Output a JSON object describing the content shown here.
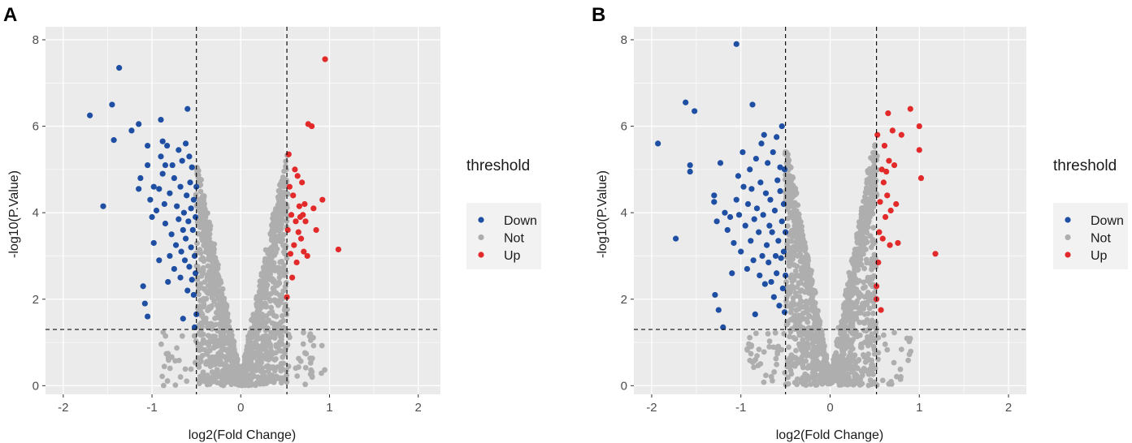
{
  "colors": {
    "down": "#1f4fa3",
    "not": "#aeaeae",
    "up": "#e32a2a",
    "panel": "#ebebeb",
    "grid": "#ffffff"
  },
  "chart_data": [
    {
      "type": "scatter",
      "panel_label": "A",
      "title": "",
      "xlabel": "log2(Fold Change)",
      "ylabel": "-log10(P.Value)",
      "xlim": [
        -2.2,
        2.25
      ],
      "ylim": [
        -0.2,
        8.3
      ],
      "xticks": [
        -2,
        -1,
        0,
        1,
        2
      ],
      "yticks": [
        0,
        2,
        4,
        6,
        8
      ],
      "thresholds": {
        "x": [
          -0.5,
          0.52
        ],
        "y": 1.3
      },
      "legend": {
        "title": "threshold",
        "position": "right",
        "entries": [
          "Down",
          "Not",
          "Up"
        ]
      },
      "series": [
        {
          "name": "Down",
          "points": [
            [
              -1.7,
              6.25
            ],
            [
              -1.55,
              4.15
            ],
            [
              -1.45,
              6.5
            ],
            [
              -1.43,
              5.68
            ],
            [
              -1.37,
              7.35
            ],
            [
              -1.23,
              5.9
            ],
            [
              -1.15,
              6.05
            ],
            [
              -1.15,
              4.55
            ],
            [
              -1.13,
              4.8
            ],
            [
              -1.1,
              2.3
            ],
            [
              -1.08,
              1.9
            ],
            [
              -1.05,
              1.6
            ],
            [
              -1.05,
              5.1
            ],
            [
              -1.05,
              5.55
            ],
            [
              -1.02,
              4.3
            ],
            [
              -1.0,
              3.9
            ],
            [
              -0.98,
              3.3
            ],
            [
              -0.98,
              4.6
            ],
            [
              -0.95,
              4.05
            ],
            [
              -0.92,
              4.55
            ],
            [
              -0.92,
              2.9
            ],
            [
              -0.9,
              6.15
            ],
            [
              -0.9,
              5.3
            ],
            [
              -0.88,
              5.65
            ],
            [
              -0.88,
              4.9
            ],
            [
              -0.86,
              4.2
            ],
            [
              -0.85,
              3.75
            ],
            [
              -0.85,
              5.1
            ],
            [
              -0.83,
              5.55
            ],
            [
              -0.82,
              2.4
            ],
            [
              -0.8,
              4.45
            ],
            [
              -0.8,
              3.0
            ],
            [
              -0.78,
              3.5
            ],
            [
              -0.77,
              5.1
            ],
            [
              -0.75,
              4.8
            ],
            [
              -0.75,
              2.7
            ],
            [
              -0.73,
              3.25
            ],
            [
              -0.72,
              4.15
            ],
            [
              -0.7,
              5.45
            ],
            [
              -0.7,
              3.85
            ],
            [
              -0.68,
              4.6
            ],
            [
              -0.68,
              2.5
            ],
            [
              -0.67,
              3.1
            ],
            [
              -0.66,
              5.2
            ],
            [
              -0.65,
              3.6
            ],
            [
              -0.65,
              1.55
            ],
            [
              -0.64,
              4.0
            ],
            [
              -0.63,
              2.9
            ],
            [
              -0.62,
              5.6
            ],
            [
              -0.62,
              3.4
            ],
            [
              -0.61,
              4.4
            ],
            [
              -0.6,
              2.2
            ],
            [
              -0.6,
              6.4
            ],
            [
              -0.59,
              3.8
            ],
            [
              -0.58,
              5.3
            ],
            [
              -0.58,
              2.75
            ],
            [
              -0.57,
              4.7
            ],
            [
              -0.56,
              3.2
            ],
            [
              -0.56,
              4.1
            ],
            [
              -0.55,
              2.45
            ],
            [
              -0.55,
              5.05
            ],
            [
              -0.54,
              3.6
            ],
            [
              -0.53,
              2.1
            ],
            [
              -0.53,
              4.3
            ],
            [
              -0.52,
              3.0
            ],
            [
              -0.52,
              1.35
            ],
            [
              -0.51,
              3.9
            ],
            [
              -0.51,
              2.6
            ],
            [
              -0.5,
              4.6
            ],
            [
              -0.5,
              1.65
            ]
          ]
        },
        {
          "name": "Up",
          "points": [
            [
              0.52,
              2.05
            ],
            [
              0.53,
              3.6
            ],
            [
              0.54,
              5.35
            ],
            [
              0.55,
              4.6
            ],
            [
              0.56,
              3.05
            ],
            [
              0.57,
              3.95
            ],
            [
              0.58,
              2.5
            ],
            [
              0.59,
              4.4
            ],
            [
              0.6,
              3.25
            ],
            [
              0.61,
              5.0
            ],
            [
              0.62,
              3.8
            ],
            [
              0.63,
              2.85
            ],
            [
              0.64,
              4.85
            ],
            [
              0.65,
              3.55
            ],
            [
              0.66,
              4.15
            ],
            [
              0.67,
              3.9
            ],
            [
              0.68,
              3.4
            ],
            [
              0.69,
              4.7
            ],
            [
              0.7,
              3.95
            ],
            [
              0.71,
              3.1
            ],
            [
              0.72,
              4.2
            ],
            [
              0.73,
              3.8
            ],
            [
              0.75,
              3.0
            ],
            [
              0.76,
              6.05
            ],
            [
              0.8,
              6.0
            ],
            [
              0.82,
              4.1
            ],
            [
              0.85,
              3.6
            ],
            [
              0.92,
              4.3
            ],
            [
              0.95,
              7.55
            ],
            [
              1.1,
              3.15
            ]
          ]
        }
      ]
    },
    {
      "type": "scatter",
      "panel_label": "B",
      "title": "",
      "xlabel": "log2(Fold Change)",
      "ylabel": "-log10(P.Value)",
      "xlim": [
        -2.2,
        2.2
      ],
      "ylim": [
        -0.2,
        8.3
      ],
      "xticks": [
        -2,
        -1,
        0,
        1,
        2
      ],
      "yticks": [
        0,
        2,
        4,
        6,
        8
      ],
      "thresholds": {
        "x": [
          -0.5,
          0.52
        ],
        "y": 1.3
      },
      "legend": {
        "title": "threshold",
        "position": "right",
        "entries": [
          "Down",
          "Not",
          "Up"
        ]
      },
      "series": [
        {
          "name": "Down",
          "points": [
            [
              -1.93,
              5.6
            ],
            [
              -1.73,
              3.4
            ],
            [
              -1.62,
              6.55
            ],
            [
              -1.57,
              5.1
            ],
            [
              -1.57,
              4.95
            ],
            [
              -1.52,
              6.35
            ],
            [
              -1.3,
              4.4
            ],
            [
              -1.3,
              4.25
            ],
            [
              -1.29,
              2.1
            ],
            [
              -1.27,
              3.8
            ],
            [
              -1.25,
              1.75
            ],
            [
              -1.23,
              5.15
            ],
            [
              -1.2,
              1.35
            ],
            [
              -1.18,
              4.0
            ],
            [
              -1.15,
              3.6
            ],
            [
              -1.12,
              3.9
            ],
            [
              -1.1,
              2.6
            ],
            [
              -1.08,
              3.3
            ],
            [
              -1.05,
              7.9
            ],
            [
              -1.05,
              4.3
            ],
            [
              -1.03,
              4.85
            ],
            [
              -1.02,
              3.95
            ],
            [
              -1.0,
              3.1
            ],
            [
              -0.98,
              5.4
            ],
            [
              -0.97,
              4.6
            ],
            [
              -0.95,
              3.7
            ],
            [
              -0.93,
              2.7
            ],
            [
              -0.92,
              4.2
            ],
            [
              -0.9,
              5.0
            ],
            [
              -0.89,
              3.35
            ],
            [
              -0.88,
              4.55
            ],
            [
              -0.87,
              6.5
            ],
            [
              -0.86,
              2.9
            ],
            [
              -0.85,
              3.85
            ],
            [
              -0.84,
              1.65
            ],
            [
              -0.83,
              5.25
            ],
            [
              -0.82,
              4.1
            ],
            [
              -0.8,
              3.55
            ],
            [
              -0.79,
              2.55
            ],
            [
              -0.78,
              4.7
            ],
            [
              -0.77,
              5.6
            ],
            [
              -0.76,
              3.0
            ],
            [
              -0.75,
              3.95
            ],
            [
              -0.74,
              5.8
            ],
            [
              -0.73,
              2.35
            ],
            [
              -0.72,
              4.45
            ],
            [
              -0.71,
              3.25
            ],
            [
              -0.7,
              5.15
            ],
            [
              -0.69,
              2.85
            ],
            [
              -0.68,
              3.7
            ],
            [
              -0.67,
              4.3
            ],
            [
              -0.66,
              2.4
            ],
            [
              -0.65,
              3.55
            ],
            [
              -0.64,
              5.4
            ],
            [
              -0.63,
              2.05
            ],
            [
              -0.62,
              4.05
            ],
            [
              -0.61,
              3.0
            ],
            [
              -0.6,
              5.75
            ],
            [
              -0.6,
              2.6
            ],
            [
              -0.59,
              4.75
            ],
            [
              -0.58,
              3.35
            ],
            [
              -0.57,
              1.85
            ],
            [
              -0.56,
              4.5
            ],
            [
              -0.56,
              5.05
            ],
            [
              -0.55,
              2.95
            ],
            [
              -0.54,
              3.8
            ],
            [
              -0.54,
              6.0
            ],
            [
              -0.53,
              2.25
            ],
            [
              -0.52,
              4.2
            ],
            [
              -0.52,
              3.1
            ],
            [
              -0.51,
              1.7
            ],
            [
              -0.51,
              5.0
            ],
            [
              -0.5,
              3.55
            ],
            [
              -0.5,
              2.55
            ]
          ]
        },
        {
          "name": "Up",
          "points": [
            [
              0.52,
              2.3
            ],
            [
              0.52,
              2.0
            ],
            [
              0.53,
              5.8
            ],
            [
              0.54,
              2.85
            ],
            [
              0.55,
              3.55
            ],
            [
              0.56,
              4.25
            ],
            [
              0.57,
              1.75
            ],
            [
              0.58,
              5.0
            ],
            [
              0.59,
              3.4
            ],
            [
              0.6,
              4.7
            ],
            [
              0.61,
              5.55
            ],
            [
              0.62,
              3.9
            ],
            [
              0.63,
              4.95
            ],
            [
              0.64,
              4.4
            ],
            [
              0.65,
              6.3
            ],
            [
              0.66,
              5.2
            ],
            [
              0.67,
              3.25
            ],
            [
              0.68,
              4.05
            ],
            [
              0.7,
              5.9
            ],
            [
              0.72,
              5.1
            ],
            [
              0.74,
              4.2
            ],
            [
              0.76,
              3.3
            ],
            [
              0.8,
              5.8
            ],
            [
              0.9,
              6.4
            ],
            [
              1.0,
              6.0
            ],
            [
              1.0,
              5.45
            ],
            [
              1.02,
              4.8
            ],
            [
              1.18,
              3.05
            ]
          ]
        }
      ]
    }
  ]
}
